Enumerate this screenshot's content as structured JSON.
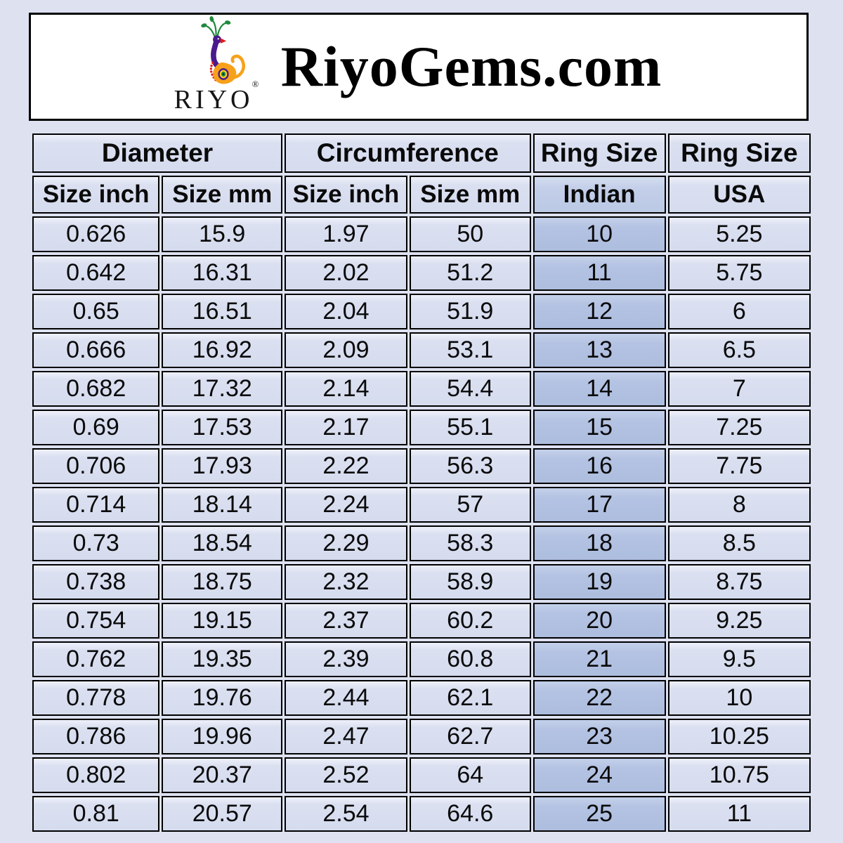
{
  "header": {
    "site_title": "RiyoGems.com",
    "logo": {
      "brand": "RIYO",
      "registered_mark": "®",
      "icon": "peacock-logo-icon"
    }
  },
  "table": {
    "column_groups": [
      {
        "label": "Diameter"
      },
      {
        "label": "Circumference"
      },
      {
        "label": "Ring Size"
      },
      {
        "label": "Ring Size"
      }
    ],
    "subheaders": [
      "Size inch",
      "Size mm",
      "Size inch",
      "Size mm",
      "Indian",
      "USA"
    ],
    "highlighted_column": "Indian",
    "rows": [
      [
        "0.626",
        "15.9",
        "1.97",
        "50",
        "10",
        "5.25"
      ],
      [
        "0.642",
        "16.31",
        "2.02",
        "51.2",
        "11",
        "5.75"
      ],
      [
        "0.65",
        "16.51",
        "2.04",
        "51.9",
        "12",
        "6"
      ],
      [
        "0.666",
        "16.92",
        "2.09",
        "53.1",
        "13",
        "6.5"
      ],
      [
        "0.682",
        "17.32",
        "2.14",
        "54.4",
        "14",
        "7"
      ],
      [
        "0.69",
        "17.53",
        "2.17",
        "55.1",
        "15",
        "7.25"
      ],
      [
        "0.706",
        "17.93",
        "2.22",
        "56.3",
        "16",
        "7.75"
      ],
      [
        "0.714",
        "18.14",
        "2.24",
        "57",
        "17",
        "8"
      ],
      [
        "0.73",
        "18.54",
        "2.29",
        "58.3",
        "18",
        "8.5"
      ],
      [
        "0.738",
        "18.75",
        "2.32",
        "58.9",
        "19",
        "8.75"
      ],
      [
        "0.754",
        "19.15",
        "2.37",
        "60.2",
        "20",
        "9.25"
      ],
      [
        "0.762",
        "19.35",
        "2.39",
        "60.8",
        "21",
        "9.5"
      ],
      [
        "0.778",
        "19.76",
        "2.44",
        "62.1",
        "22",
        "10"
      ],
      [
        "0.786",
        "19.96",
        "2.47",
        "62.7",
        "23",
        "10.25"
      ],
      [
        "0.802",
        "20.37",
        "2.52",
        "64",
        "24",
        "10.75"
      ],
      [
        "0.81",
        "20.57",
        "2.54",
        "64.6",
        "25",
        "11"
      ]
    ]
  },
  "colors": {
    "page_background": "#dde1f0",
    "header_box_background": "#ffffff",
    "cell_background": "#d8def0",
    "indian_header_background": "#c4cfe9",
    "indian_cell_background": "#b4c3e3",
    "border": "#000000",
    "logo_purple": "#4a1a8c",
    "logo_orange": "#f7a11a",
    "logo_green": "#1f8a3d",
    "logo_red": "#e01b1b",
    "logo_yellow": "#ffd21c"
  }
}
